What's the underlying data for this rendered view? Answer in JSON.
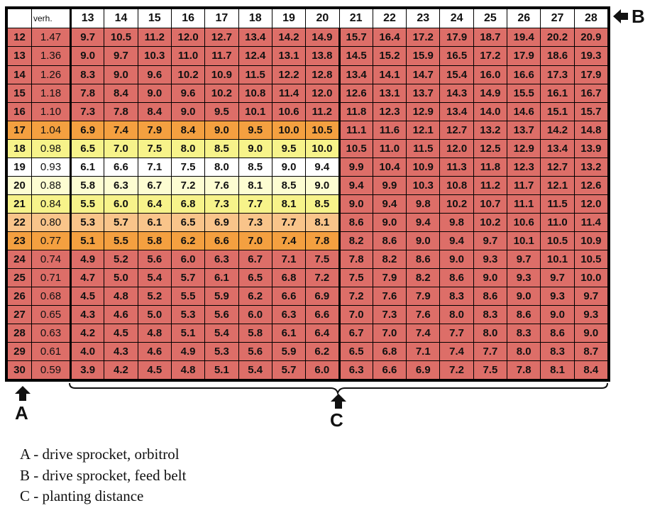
{
  "table": {
    "header_ratio_label": "verh.",
    "columns": [
      "13",
      "14",
      "15",
      "16",
      "17",
      "18",
      "19",
      "20",
      "21",
      "22",
      "23",
      "24",
      "25",
      "26",
      "27",
      "28"
    ],
    "rows": [
      {
        "a": "12",
        "ratio": "1.47",
        "values": [
          "9.7",
          "10.5",
          "11.2",
          "12.0",
          "12.7",
          "13.4",
          "14.2",
          "14.9",
          "15.7",
          "16.4",
          "17.2",
          "17.9",
          "18.7",
          "19.4",
          "20.2",
          "20.9"
        ]
      },
      {
        "a": "13",
        "ratio": "1.36",
        "values": [
          "9.0",
          "9.7",
          "10.3",
          "11.0",
          "11.7",
          "12.4",
          "13.1",
          "13.8",
          "14.5",
          "15.2",
          "15.9",
          "16.5",
          "17.2",
          "17.9",
          "18.6",
          "19.3"
        ]
      },
      {
        "a": "14",
        "ratio": "1.26",
        "values": [
          "8.3",
          "9.0",
          "9.6",
          "10.2",
          "10.9",
          "11.5",
          "12.2",
          "12.8",
          "13.4",
          "14.1",
          "14.7",
          "15.4",
          "16.0",
          "16.6",
          "17.3",
          "17.9"
        ]
      },
      {
        "a": "15",
        "ratio": "1.18",
        "values": [
          "7.8",
          "8.4",
          "9.0",
          "9.6",
          "10.2",
          "10.8",
          "11.4",
          "12.0",
          "12.6",
          "13.1",
          "13.7",
          "14.3",
          "14.9",
          "15.5",
          "16.1",
          "16.7"
        ]
      },
      {
        "a": "16",
        "ratio": "1.10",
        "values": [
          "7.3",
          "7.8",
          "8.4",
          "9.0",
          "9.5",
          "10.1",
          "10.6",
          "11.2",
          "11.8",
          "12.3",
          "12.9",
          "13.4",
          "14.0",
          "14.6",
          "15.1",
          "15.7"
        ]
      },
      {
        "a": "17",
        "ratio": "1.04",
        "values": [
          "6.9",
          "7.4",
          "7.9",
          "8.4",
          "9.0",
          "9.5",
          "10.0",
          "10.5",
          "11.1",
          "11.6",
          "12.1",
          "12.7",
          "13.2",
          "13.7",
          "14.2",
          "14.8"
        ]
      },
      {
        "a": "18",
        "ratio": "0.98",
        "values": [
          "6.5",
          "7.0",
          "7.5",
          "8.0",
          "8.5",
          "9.0",
          "9.5",
          "10.0",
          "10.5",
          "11.0",
          "11.5",
          "12.0",
          "12.5",
          "12.9",
          "13.4",
          "13.9"
        ]
      },
      {
        "a": "19",
        "ratio": "0.93",
        "values": [
          "6.1",
          "6.6",
          "7.1",
          "7.5",
          "8.0",
          "8.5",
          "9.0",
          "9.4",
          "9.9",
          "10.4",
          "10.9",
          "11.3",
          "11.8",
          "12.3",
          "12.7",
          "13.2"
        ]
      },
      {
        "a": "20",
        "ratio": "0.88",
        "values": [
          "5.8",
          "6.3",
          "6.7",
          "7.2",
          "7.6",
          "8.1",
          "8.5",
          "9.0",
          "9.4",
          "9.9",
          "10.3",
          "10.8",
          "11.2",
          "11.7",
          "12.1",
          "12.6"
        ]
      },
      {
        "a": "21",
        "ratio": "0.84",
        "values": [
          "5.5",
          "6.0",
          "6.4",
          "6.8",
          "7.3",
          "7.7",
          "8.1",
          "8.5",
          "9.0",
          "9.4",
          "9.8",
          "10.2",
          "10.7",
          "11.1",
          "11.5",
          "12.0"
        ]
      },
      {
        "a": "22",
        "ratio": "0.80",
        "values": [
          "5.3",
          "5.7",
          "6.1",
          "6.5",
          "6.9",
          "7.3",
          "7.7",
          "8.1",
          "8.6",
          "9.0",
          "9.4",
          "9.8",
          "10.2",
          "10.6",
          "11.0",
          "11.4"
        ]
      },
      {
        "a": "23",
        "ratio": "0.77",
        "values": [
          "5.1",
          "5.5",
          "5.8",
          "6.2",
          "6.6",
          "7.0",
          "7.4",
          "7.8",
          "8.2",
          "8.6",
          "9.0",
          "9.4",
          "9.7",
          "10.1",
          "10.5",
          "10.9"
        ]
      },
      {
        "a": "24",
        "ratio": "0.74",
        "values": [
          "4.9",
          "5.2",
          "5.6",
          "6.0",
          "6.3",
          "6.7",
          "7.1",
          "7.5",
          "7.8",
          "8.2",
          "8.6",
          "9.0",
          "9.3",
          "9.7",
          "10.1",
          "10.5"
        ]
      },
      {
        "a": "25",
        "ratio": "0.71",
        "values": [
          "4.7",
          "5.0",
          "5.4",
          "5.7",
          "6.1",
          "6.5",
          "6.8",
          "7.2",
          "7.5",
          "7.9",
          "8.2",
          "8.6",
          "9.0",
          "9.3",
          "9.7",
          "10.0"
        ]
      },
      {
        "a": "26",
        "ratio": "0.68",
        "values": [
          "4.5",
          "4.8",
          "5.2",
          "5.5",
          "5.9",
          "6.2",
          "6.6",
          "6.9",
          "7.2",
          "7.6",
          "7.9",
          "8.3",
          "8.6",
          "9.0",
          "9.3",
          "9.7"
        ]
      },
      {
        "a": "27",
        "ratio": "0.65",
        "values": [
          "4.3",
          "4.6",
          "5.0",
          "5.3",
          "5.6",
          "6.0",
          "6.3",
          "6.6",
          "7.0",
          "7.3",
          "7.6",
          "8.0",
          "8.3",
          "8.6",
          "9.0",
          "9.3"
        ]
      },
      {
        "a": "28",
        "ratio": "0.63",
        "values": [
          "4.2",
          "4.5",
          "4.8",
          "5.1",
          "5.4",
          "5.8",
          "6.1",
          "6.4",
          "6.7",
          "7.0",
          "7.4",
          "7.7",
          "8.0",
          "8.3",
          "8.6",
          "9.0"
        ]
      },
      {
        "a": "29",
        "ratio": "0.61",
        "values": [
          "4.0",
          "4.3",
          "4.6",
          "4.9",
          "5.3",
          "5.6",
          "5.9",
          "6.2",
          "6.5",
          "6.8",
          "7.1",
          "7.4",
          "7.7",
          "8.0",
          "8.3",
          "8.7"
        ]
      },
      {
        "a": "30",
        "ratio": "0.59",
        "values": [
          "3.9",
          "4.2",
          "4.5",
          "4.8",
          "5.1",
          "5.4",
          "5.7",
          "6.0",
          "6.3",
          "6.6",
          "6.9",
          "7.2",
          "7.5",
          "7.8",
          "8.1",
          "8.4"
        ]
      }
    ],
    "highlight_rows": {
      "17": "orange",
      "18": "yellow",
      "19": "white",
      "20": "lightyellow",
      "21": "yellow",
      "22": "peach",
      "23": "orange"
    },
    "highlight_column_count": 8,
    "colors": {
      "red": "#dd6e68",
      "orange": "#f4a040",
      "yellow": "#f7f38a",
      "lightyellow": "#fdfdd2",
      "white": "#ffffff",
      "peach": "#f9c48a"
    }
  },
  "markers": {
    "a": "A",
    "b": "B",
    "c": "C",
    "arrow_icon": "arrow-icon"
  },
  "legend": [
    "A - drive sprocket, orbitrol",
    "B - drive sprocket, feed belt",
    "C - planting distance"
  ]
}
